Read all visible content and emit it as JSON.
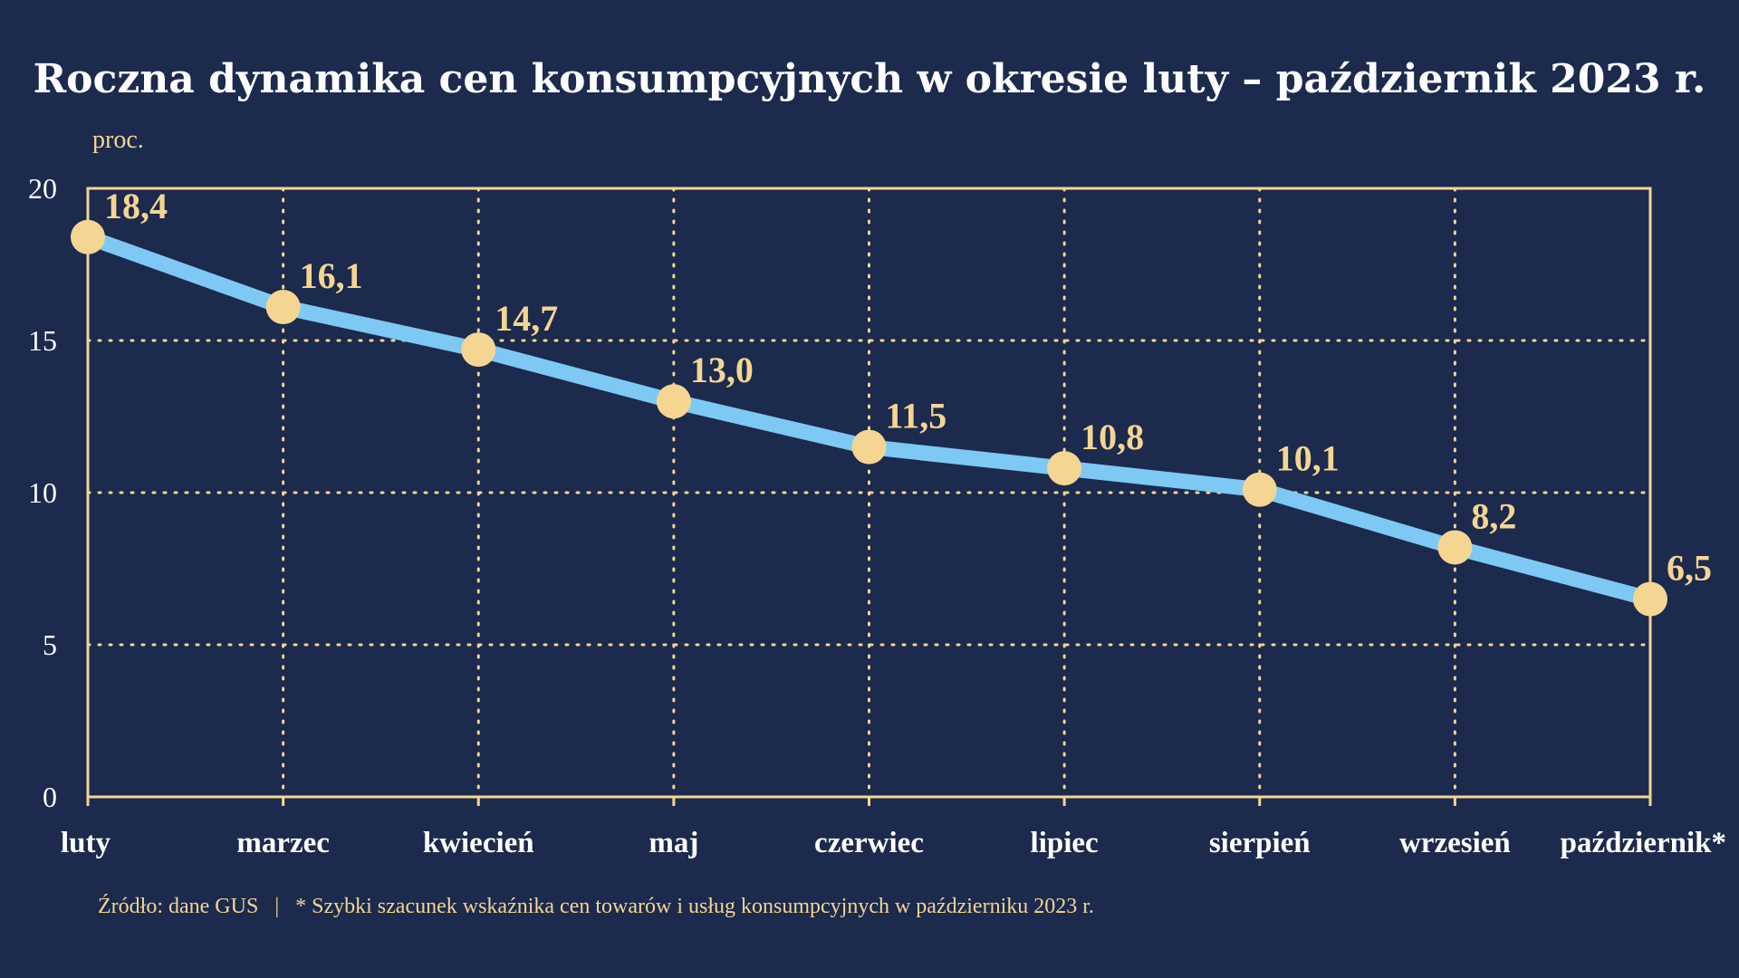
{
  "colors": {
    "background": "#1b2a4d",
    "frame": "#f5d592",
    "line": "#7ec8f4",
    "marker": "#f5d592",
    "label": "#f5d592",
    "text": "#ffffff"
  },
  "chart_data": {
    "type": "line",
    "title": "Roczna dynamika cen konsumpcyjnych w okresie luty – październik 2023 r.",
    "unit": "proc.",
    "xlabel": "",
    "ylabel": "",
    "categories": [
      "luty",
      "marzec",
      "kwiecień",
      "maj",
      "czerwiec",
      "lipiec",
      "sierpień",
      "wrzesień",
      "październik*"
    ],
    "series": [
      {
        "values": [
          18.4,
          16.1,
          14.7,
          13.0,
          11.5,
          10.8,
          10.1,
          8.2,
          6.5
        ]
      }
    ],
    "data_labels": [
      "18,4",
      "16,1",
      "14,7",
      "13,0",
      "11,5",
      "10,8",
      "10,1",
      "8,2",
      "6,5"
    ],
    "ylim": [
      0,
      20
    ],
    "yticks": [
      0,
      5,
      10,
      15,
      20
    ],
    "ytick_labels": [
      "0",
      "5",
      "10",
      "15",
      "20"
    ],
    "grid": true,
    "grid_style": "dotted",
    "legend": "none"
  },
  "footnote": {
    "source": "Źródło: dane GUS",
    "separator": "|",
    "note": "* Szybki szacunek wskaźnika cen towarów i usług konsumpcyjnych w październiku 2023 r."
  }
}
